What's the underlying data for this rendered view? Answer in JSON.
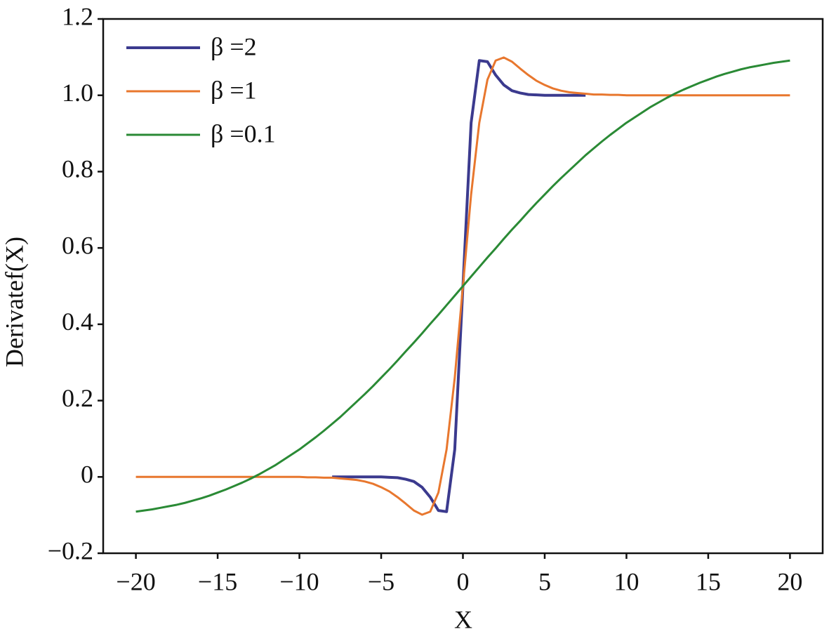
{
  "chart_data": {
    "type": "line",
    "xlabel": "X",
    "ylabel": "Derivatef(X)",
    "x": [
      -20,
      -19.5,
      -19,
      -18.5,
      -18,
      -17.5,
      -17,
      -16.5,
      -16,
      -15.5,
      -15,
      -14.5,
      -14,
      -13.5,
      -13,
      -12.5,
      -12,
      -11.5,
      -11,
      -10.5,
      -10,
      -9.5,
      -9,
      -8.5,
      -8,
      -7.5,
      -7,
      -6.5,
      -6,
      -5.5,
      -5,
      -4.5,
      -4,
      -3.5,
      -3,
      -2.5,
      -2,
      -1.5,
      -1,
      -0.5,
      0,
      0.5,
      1,
      1.5,
      2,
      2.5,
      3,
      3.5,
      4,
      4.5,
      5,
      5.5,
      6,
      6.5,
      7,
      7.5,
      8,
      8.5,
      9,
      9.5,
      10,
      10.5,
      11,
      11.5,
      12,
      12.5,
      13,
      13.5,
      14,
      14.5,
      15,
      15.5,
      16,
      16.5,
      17,
      17.5,
      18,
      18.5,
      19,
      19.5,
      20
    ],
    "series": [
      {
        "name": "β =2",
        "color": "#3b3a8e",
        "width": 4,
        "values": [
          null,
          null,
          null,
          null,
          null,
          null,
          null,
          null,
          null,
          null,
          null,
          null,
          null,
          null,
          null,
          null,
          null,
          null,
          null,
          null,
          null,
          null,
          null,
          null,
          0,
          0,
          0,
          0,
          0,
          0,
          0,
          -0.001,
          -0.002,
          -0.006,
          -0.012,
          -0.027,
          -0.053,
          -0.088,
          -0.091,
          0.072,
          0.5,
          0.928,
          1.091,
          1.088,
          1.053,
          1.027,
          1.012,
          1.006,
          1.002,
          1.001,
          1,
          1,
          1,
          1,
          1,
          1,
          null,
          null,
          null,
          null,
          null,
          null,
          null,
          null,
          null,
          null,
          null,
          null,
          null,
          null,
          null,
          null,
          null,
          null,
          null,
          null,
          null,
          null,
          null,
          null,
          null
        ]
      },
      {
        "name": "β =1",
        "color": "#e8772e",
        "width": 3,
        "values": [
          0,
          0,
          0,
          0,
          0,
          0,
          0,
          0,
          0,
          0,
          0,
          0,
          0,
          0,
          0,
          0,
          0,
          0,
          0,
          0,
          0,
          -0.001,
          -0.001,
          -0.002,
          -0.002,
          -0.004,
          -0.006,
          -0.008,
          -0.012,
          -0.018,
          -0.027,
          -0.038,
          -0.053,
          -0.07,
          -0.088,
          -0.099,
          -0.091,
          -0.041,
          0.072,
          0.26,
          0.5,
          0.74,
          0.928,
          1.041,
          1.091,
          1.099,
          1.088,
          1.07,
          1.053,
          1.038,
          1.027,
          1.018,
          1.012,
          1.008,
          1.006,
          1.004,
          1.002,
          1.002,
          1.001,
          1.001,
          1,
          1,
          1,
          1,
          1,
          1,
          1,
          1,
          1,
          1,
          1,
          1,
          1,
          1,
          1,
          1,
          1,
          1,
          1,
          1,
          1
        ]
      },
      {
        "name": "β =0.1",
        "color": "#2a8a35",
        "width": 3,
        "values": [
          -0.091,
          -0.088,
          -0.085,
          -0.081,
          -0.077,
          -0.073,
          -0.068,
          -0.062,
          -0.056,
          -0.049,
          -0.041,
          -0.033,
          -0.024,
          -0.015,
          -0.005,
          0.006,
          0.018,
          0.03,
          0.044,
          0.058,
          0.072,
          0.088,
          0.104,
          0.121,
          0.139,
          0.157,
          0.177,
          0.197,
          0.217,
          0.238,
          0.26,
          0.282,
          0.305,
          0.329,
          0.352,
          0.376,
          0.401,
          0.425,
          0.45,
          0.475,
          0.5,
          0.525,
          0.55,
          0.575,
          0.599,
          0.624,
          0.648,
          0.671,
          0.695,
          0.718,
          0.74,
          0.762,
          0.783,
          0.803,
          0.823,
          0.843,
          0.861,
          0.879,
          0.896,
          0.912,
          0.928,
          0.942,
          0.956,
          0.97,
          0.982,
          0.994,
          1.005,
          1.015,
          1.024,
          1.033,
          1.041,
          1.049,
          1.056,
          1.062,
          1.068,
          1.073,
          1.077,
          1.081,
          1.085,
          1.088,
          1.091
        ]
      }
    ],
    "xlim": [
      -22,
      22
    ],
    "xticks": [
      {
        "value": -20,
        "label": "−20"
      },
      {
        "value": -15,
        "label": "−15"
      },
      {
        "value": -10,
        "label": "−10"
      },
      {
        "value": -5,
        "label": "−5"
      },
      0,
      5,
      10,
      15,
      20
    ],
    "ylim": [
      -0.2,
      1.2
    ],
    "yticks": [
      {
        "value": -0.2,
        "label": "−0.2"
      },
      0,
      0.2,
      0.4,
      0.6,
      0.8,
      {
        "value": 1.0,
        "label": "1.0"
      },
      1.2
    ],
    "grid": false,
    "legend": "upper-left"
  }
}
